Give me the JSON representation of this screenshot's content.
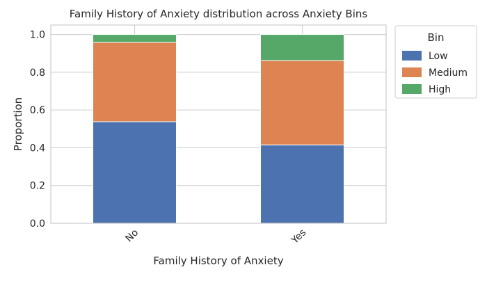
{
  "chart_data": {
    "type": "bar",
    "stacked": true,
    "title": "Family History of Anxiety distribution across Anxiety Bins",
    "xlabel": "Family History of Anxiety",
    "ylabel": "Proportion",
    "categories": [
      "No",
      "Yes"
    ],
    "series": [
      {
        "name": "Low",
        "color": "#4c72b0",
        "values": [
          0.538,
          0.415
        ]
      },
      {
        "name": "Medium",
        "color": "#dd8452",
        "values": [
          0.42,
          0.447
        ]
      },
      {
        "name": "High",
        "color": "#55a868",
        "values": [
          0.042,
          0.138
        ]
      }
    ],
    "ylim": [
      0,
      1.05
    ],
    "yticks": [
      "0.0",
      "0.2",
      "0.4",
      "0.6",
      "0.8",
      "1.0"
    ],
    "ytick_values": [
      0,
      0.2,
      0.4,
      0.6,
      0.8,
      1.0
    ],
    "grid": true,
    "legend": {
      "title": "Bin",
      "placement": "outside-right"
    }
  }
}
